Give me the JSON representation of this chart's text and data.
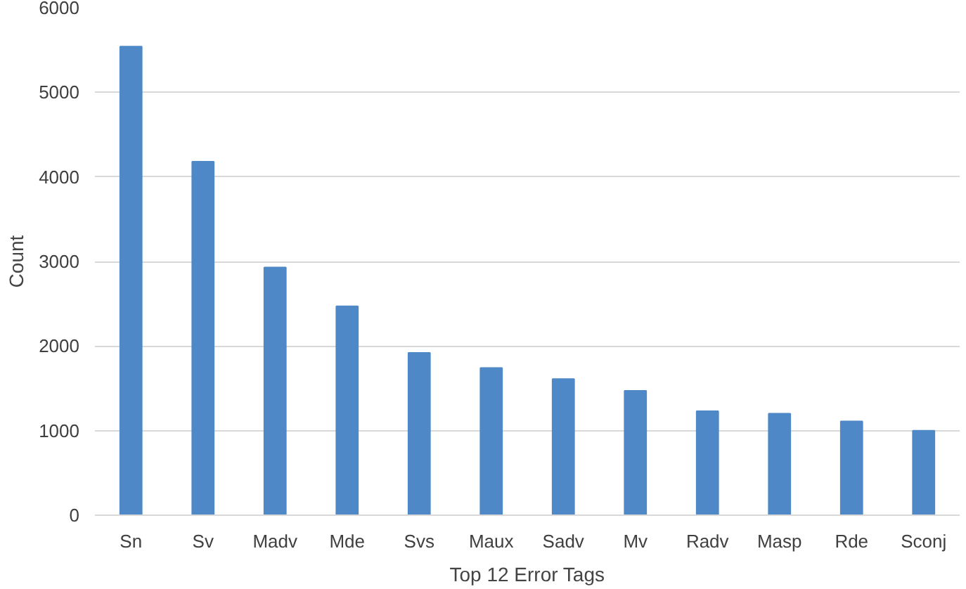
{
  "chart_data": {
    "type": "bar",
    "xlabel": "Top 12 Error Tags",
    "ylabel": "Count",
    "categories": [
      "Sn",
      "Sv",
      "Madv",
      "Mde",
      "Svs",
      "Maux",
      "Sadv",
      "Mv",
      "Radv",
      "Masp",
      "Rde",
      "Sconj"
    ],
    "values": [
      5540,
      4180,
      2930,
      2470,
      1920,
      1740,
      1610,
      1470,
      1230,
      1200,
      1110,
      1000
    ],
    "color": "#4f88c6",
    "ylim": [
      0,
      6000
    ],
    "yticks": [
      0,
      1000,
      2000,
      3000,
      4000,
      5000,
      6000
    ],
    "grid": "y"
  }
}
